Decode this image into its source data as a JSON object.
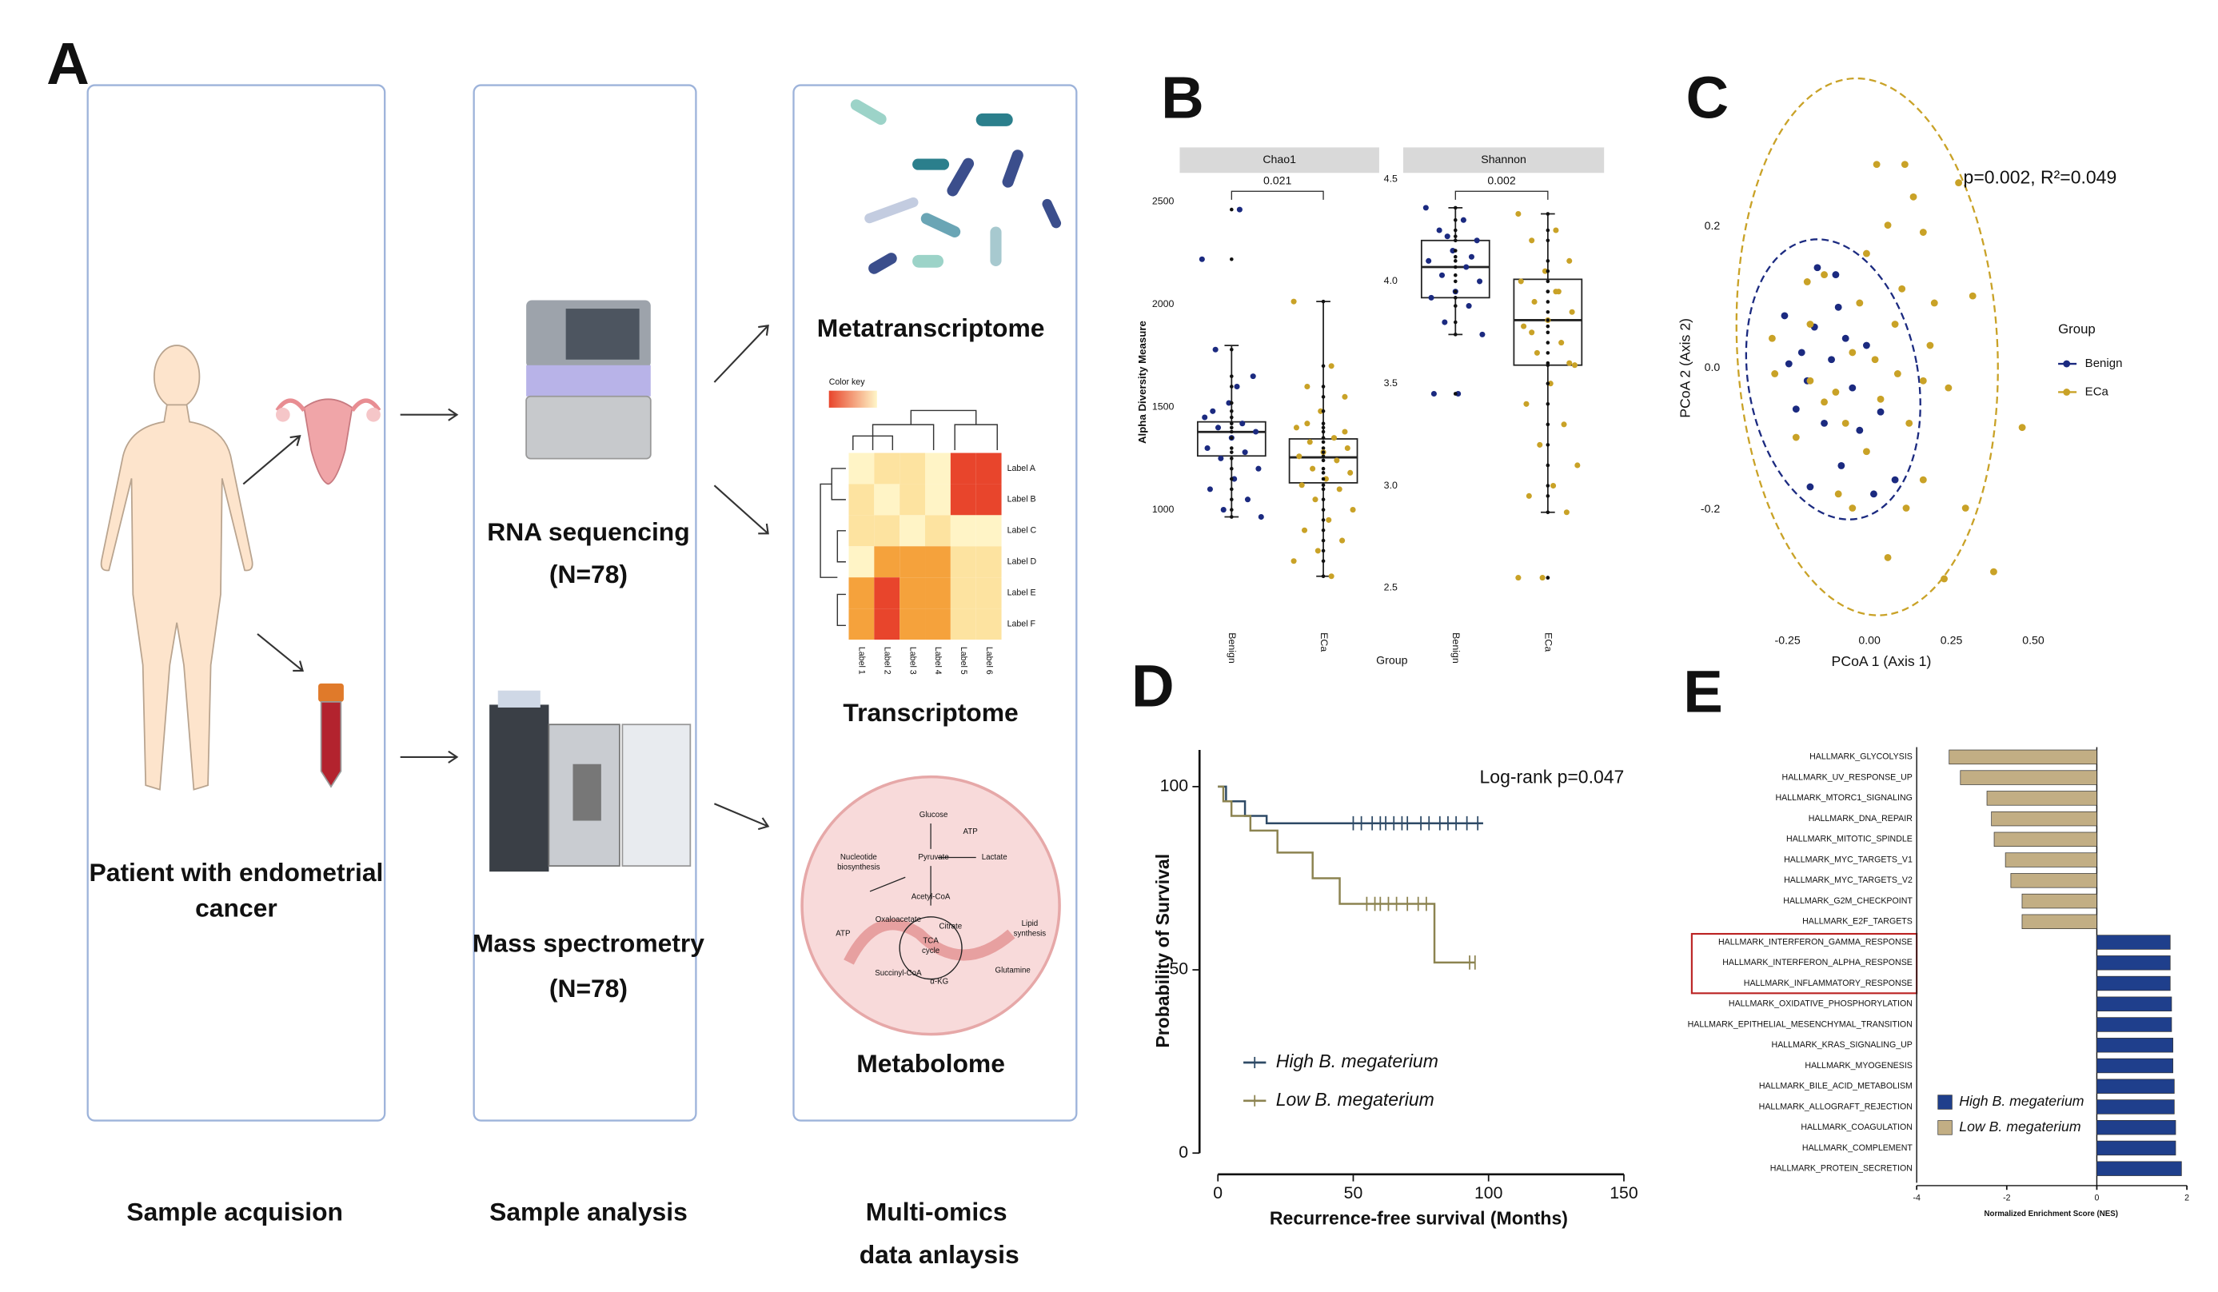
{
  "diagram": {
    "panel_label": "A",
    "patient": [
      "Patient with endometrial",
      "cancer"
    ],
    "rna": [
      "RNA sequencing",
      "(N=78)"
    ],
    "ms": [
      "Mass spectrometry",
      "(N=78)"
    ],
    "omics": [
      "Metatranscriptome",
      "Transcriptome",
      "Metabolome"
    ],
    "stages": [
      "Sample acquision",
      "Sample analysis",
      "Multi-omics",
      "data anlaysis"
    ],
    "heatmap": {
      "key": "Color key",
      "rows": [
        "Label A",
        "Label B",
        "Label C",
        "Label D",
        "Label E",
        "Label F"
      ],
      "cols": [
        "Label 1",
        "Label 2",
        "Label 3",
        "Label 4",
        "Label 5",
        "Label 6"
      ]
    },
    "pathway": [
      "Glucose",
      "ATP",
      "Pyruvate",
      "Lactate",
      "Nucleotide",
      "biosynthesis",
      "Acetyl-CoA",
      "Oxaloacetate",
      "Citrate",
      "TCA",
      "cycle",
      "Lipid",
      "synthesis",
      "ATP",
      "Succinyl-CoA",
      "α-KG",
      "Glutamine"
    ]
  },
  "chart_data": [
    {
      "type": "box",
      "panel_label": "B",
      "y_label": "Alpha Diversity Measure",
      "x_label": "Group",
      "colors": [
        "#1b2a80",
        "#c9a227"
      ],
      "facets": [
        {
          "title": "Chao1",
          "p_value": 0.021,
          "categories": [
            "Benign",
            "ECa"
          ],
          "ylim": [
            450,
            2620
          ],
          "yticks": [
            1000,
            1500,
            2000,
            2500
          ],
          "boxes": [
            {
              "whislo": 965,
              "q1": 1262,
              "med": 1379,
              "q3": 1428,
              "whishi": 1800,
              "points": [
                2220,
                2462,
                1780,
                1650,
                1520,
                1450,
                1420,
                1400,
                1380,
                1350,
                1300,
                1280,
                1250,
                1200,
                1150,
                1100,
                1050,
                1000,
                965,
                1600,
                1480
              ]
            },
            {
              "whislo": 676,
              "q1": 1131,
              "med": 1255,
              "q3": 1345,
              "whishi": 2014,
              "points": [
                2014,
                1700,
                1600,
                1550,
                1480,
                1400,
                1350,
                1330,
                1300,
                1280,
                1260,
                1240,
                1200,
                1180,
                1150,
                1120,
                1100,
                1050,
                1000,
                950,
                900,
                850,
                800,
                750,
                676,
                1420,
                1380
              ]
            }
          ]
        },
        {
          "title": "Shannon",
          "p_value": 0.002,
          "categories": [
            "Benign",
            "ECa"
          ],
          "ylim": [
            2.33,
            4.51
          ],
          "yticks": [
            2.5,
            {
              "value": 3,
              "label": "3.0"
            },
            3.5,
            {
              "value": 4,
              "label": "4.0"
            },
            4.5
          ],
          "boxes": [
            {
              "whislo": 3.74,
              "q1": 3.92,
              "med": 4.07,
              "q3": 4.2,
              "whishi": 4.36,
              "points": [
                4.36,
                4.3,
                4.25,
                4.2,
                4.15,
                4.1,
                4.07,
                4.03,
                4,
                3.95,
                3.92,
                3.88,
                3.8,
                3.74,
                3.45,
                3.45,
                4.12,
                4.22
              ]
            },
            {
              "whislo": 2.87,
              "q1": 3.59,
              "med": 3.81,
              "q3": 4.01,
              "whishi": 4.33,
              "points": [
                4.33,
                4.25,
                4.2,
                4.1,
                4.05,
                4,
                3.95,
                3.9,
                3.85,
                3.81,
                3.78,
                3.7,
                3.65,
                3.59,
                3.5,
                3.4,
                3.3,
                3.2,
                3.1,
                3,
                2.95,
                2.87,
                2.55,
                2.55,
                3.95,
                3.75,
                3.6
              ]
            }
          ]
        }
      ]
    },
    {
      "type": "scatter",
      "panel_label": "C",
      "annotation": "p=0.002, R²=0.049",
      "x_label": "PCoA 1 (Axis 1)",
      "y_label": "PCoA 2 (Axis 2)",
      "legend_title": "Group",
      "legend": "right",
      "xlim": [
        -0.43,
        0.77
      ],
      "ylim": [
        -0.36,
        0.37
      ],
      "xticks": [
        -0.25,
        {
          "value": 0,
          "label": "0.00"
        },
        0.25,
        {
          "value": 0.5,
          "label": "0.50"
        }
      ],
      "yticks": [
        -0.2,
        {
          "value": 0,
          "label": "0.0"
        },
        0.2
      ],
      "series": [
        {
          "name": "Benign",
          "color": "#1b2a80",
          "x": [
            -0.246,
            -0.224,
            -0.19,
            -0.168,
            -0.138,
            -0.116,
            -0.095,
            -0.073,
            -0.052,
            -0.159,
            -0.259,
            -0.009,
            -0.03,
            0.013,
            0.034,
            -0.207,
            -0.086,
            0.078,
            -0.181,
            -0.103
          ],
          "values": [
            0.006,
            -0.058,
            -0.018,
            0.058,
            -0.078,
            0.012,
            0.086,
            0.042,
            -0.028,
            0.142,
            0.074,
            0.032,
            -0.088,
            -0.178,
            -0.062,
            0.022,
            -0.138,
            -0.158,
            -0.168,
            0.132
          ]
        },
        {
          "name": "ECa",
          "color": "#c9a227",
          "x": [
            0.022,
            0.108,
            0.134,
            0.272,
            0.056,
            0.164,
            -0.138,
            -0.009,
            -0.19,
            0.099,
            0.198,
            0.315,
            0.078,
            -0.052,
            0.034,
            0.164,
            0.241,
            0.466,
            -0.138,
            -0.224,
            -0.073,
            0.121,
            0.017,
            -0.297,
            -0.181,
            -0.03,
            0.164,
            0.112,
            0.056,
            -0.095,
            0.228,
            0.379,
            0.293,
            -0.181,
            -0.289,
            0.185,
            0.086,
            -0.103,
            -0.009,
            -0.052
          ],
          "values": [
            0.288,
            0.288,
            0.242,
            0.262,
            0.202,
            0.192,
            0.132,
            0.162,
            0.122,
            0.112,
            0.092,
            0.102,
            0.062,
            0.022,
            -0.044,
            -0.018,
            -0.028,
            -0.084,
            -0.048,
            -0.098,
            -0.078,
            -0.078,
            0.012,
            0.042,
            0.062,
            0.092,
            -0.158,
            -0.198,
            -0.268,
            -0.178,
            -0.298,
            -0.288,
            -0.198,
            -0.018,
            -0.008,
            0.032,
            -0.008,
            -0.034,
            -0.118,
            -0.198
          ]
        }
      ]
    },
    {
      "type": "line",
      "panel_label": "D",
      "annotation": "Log-rank p=0.047",
      "x_label": "Recurrence-free survival (Months)",
      "y_label": "Probability of Survival",
      "legend": "bottom-left",
      "xlim": [
        0,
        150
      ],
      "ylim": [
        0,
        110
      ],
      "xticks": [
        0,
        50,
        100,
        150
      ],
      "yticks": [
        0,
        50,
        100
      ],
      "series": [
        {
          "name": "High B. megaterium",
          "color": "#2e4a66",
          "x": [
            0,
            3,
            3,
            10,
            10,
            18,
            18,
            98
          ],
          "values": [
            100,
            100,
            96,
            96,
            92,
            92,
            90,
            90
          ],
          "censored_x": [
            50,
            53,
            57,
            60,
            62,
            65,
            68,
            70,
            75,
            78,
            82,
            85,
            88,
            92,
            96
          ]
        },
        {
          "name": "Low B. megaterium",
          "color": "#8c8350",
          "x": [
            0,
            2,
            2,
            5,
            5,
            12,
            12,
            22,
            22,
            35,
            35,
            45,
            45,
            80,
            80,
            95
          ],
          "values": [
            100,
            100,
            96,
            96,
            92,
            92,
            88,
            88,
            82,
            82,
            75,
            75,
            68,
            68,
            52,
            52
          ],
          "censored_x": [
            55,
            58,
            60,
            63,
            66,
            70,
            74,
            77,
            93,
            95
          ]
        }
      ]
    },
    {
      "type": "hbar",
      "panel_label": "E",
      "x_label": "Normalized Enrichment Score (NES)",
      "legend": "bottom-left",
      "xlim": [
        -4,
        2
      ],
      "xticks": [
        -4,
        -2,
        0,
        2
      ],
      "categories": [
        "HALLMARK_GLYCOLYSIS",
        "HALLMARK_UV_RESPONSE_UP",
        "HALLMARK_MTORC1_SIGNALING",
        "HALLMARK_DNA_REPAIR",
        "HALLMARK_MITOTIC_SPINDLE",
        "HALLMARK_MYC_TARGETS_V1",
        "HALLMARK_MYC_TARGETS_V2",
        "HALLMARK_G2M_CHECKPOINT",
        "HALLMARK_E2F_TARGETS",
        "HALLMARK_INTERFERON_GAMMA_RESPONSE",
        "HALLMARK_INTERFERON_ALPHA_RESPONSE",
        "HALLMARK_INFLAMMATORY_RESPONSE",
        "HALLMARK_OXIDATIVE_PHOSPHORYLATION",
        "HALLMARK_EPITHELIAL_MESENCHYMAL_TRANSITION",
        "HALLMARK_KRAS_SIGNALING_UP",
        "HALLMARK_MYOGENESIS",
        "HALLMARK_BILE_ACID_METABOLISM",
        "HALLMARK_ALLOGRAFT_REJECTION",
        "HALLMARK_COAGULATION",
        "HALLMARK_COMPLEMENT",
        "HALLMARK_PROTEIN_SECRETION"
      ],
      "series": [
        {
          "name": "High B. megaterium",
          "color": "#1f3f8c",
          "values": [
            null,
            null,
            null,
            null,
            null,
            null,
            null,
            null,
            null,
            1.63,
            1.63,
            1.63,
            1.66,
            1.66,
            1.69,
            1.69,
            1.72,
            1.72,
            1.75,
            1.75,
            1.88
          ]
        },
        {
          "name": "Low B. megaterium",
          "color": "#c2ae84",
          "values": [
            -3.28,
            -3.03,
            -2.44,
            -2.34,
            -2.28,
            -2.03,
            -1.91,
            -1.66,
            -1.66,
            null,
            null,
            null,
            null,
            null,
            null,
            null,
            null,
            null,
            null,
            null,
            null
          ]
        }
      ]
    }
  ]
}
